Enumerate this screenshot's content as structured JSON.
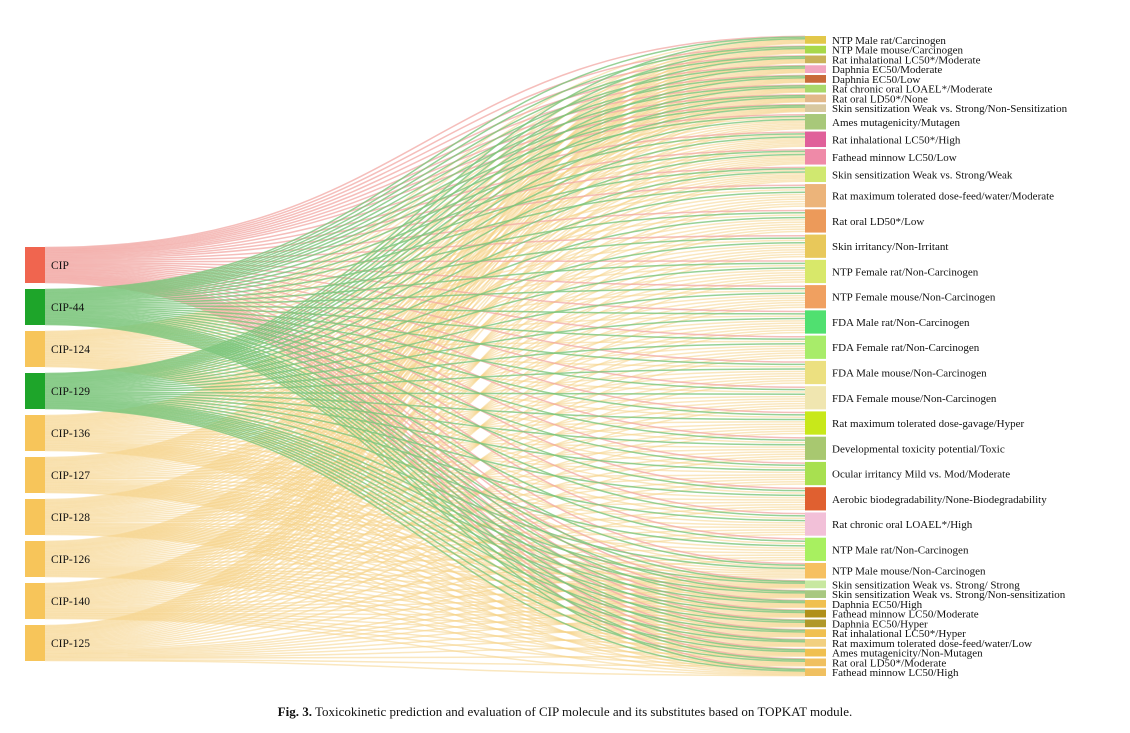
{
  "chart_data": {
    "type": "sankey",
    "sources": [
      {
        "name": "CIP",
        "color": "#f0654f"
      },
      {
        "name": "CIP-44",
        "color": "#1ea52a"
      },
      {
        "name": "CIP-124",
        "color": "#f7c55a"
      },
      {
        "name": "CIP-129",
        "color": "#1ea52a"
      },
      {
        "name": "CIP-136",
        "color": "#f7c55a"
      },
      {
        "name": "CIP-127",
        "color": "#f7c55a"
      },
      {
        "name": "CIP-128",
        "color": "#f7c55a"
      },
      {
        "name": "CIP-126",
        "color": "#f7c55a"
      },
      {
        "name": "CIP-140",
        "color": "#f7c55a"
      },
      {
        "name": "CIP-125",
        "color": "#f7c55a"
      }
    ],
    "targets": [
      {
        "name": "NTP Male rat/Carcinogen",
        "color": "#e2c84a",
        "weight": 1
      },
      {
        "name": "NTP Male mouse/Carcinogen",
        "color": "#a8d84a",
        "weight": 1
      },
      {
        "name": "Rat inhalational LC50*/Moderate",
        "color": "#c9b25a",
        "weight": 1
      },
      {
        "name": "Daphnia EC50/Moderate",
        "color": "#f2a6c0",
        "weight": 1
      },
      {
        "name": "Daphnia EC50/Low",
        "color": "#c96a3a",
        "weight": 1
      },
      {
        "name": "Rat chronic oral LOAEL*/Moderate",
        "color": "#a8d86a",
        "weight": 1
      },
      {
        "name": "Rat oral LD50*/None",
        "color": "#e2b88a",
        "weight": 1
      },
      {
        "name": "Skin sensitization Weak vs. Strong/Non-Sensitization",
        "color": "#d8c8a0",
        "weight": 1
      },
      {
        "name": "Ames mutagenicity/Mutagen",
        "color": "#a8c87a",
        "weight": 2
      },
      {
        "name": "Rat inhalational LC50*/High",
        "color": "#e0609a",
        "weight": 2
      },
      {
        "name": "Fathead minnow LC50/Low",
        "color": "#ef8aa8",
        "weight": 2
      },
      {
        "name": "Skin sensitization Weak vs. Strong/Weak",
        "color": "#d0e870",
        "weight": 2
      },
      {
        "name": "Rat maximum tolerated dose-feed/water/Moderate",
        "color": "#ecb47a",
        "weight": 3
      },
      {
        "name": "Rat oral LD50*/Low",
        "color": "#ec9a5a",
        "weight": 3
      },
      {
        "name": "Skin irritancy/Non-Irritant",
        "color": "#e8c85a",
        "weight": 3
      },
      {
        "name": "NTP Female rat/Non-Carcinogen",
        "color": "#d8e86a",
        "weight": 3
      },
      {
        "name": "NTP  Female mouse/Non-Carcinogen",
        "color": "#f0a060",
        "weight": 3
      },
      {
        "name": "FDA Male rat/Non-Carcinogen",
        "color": "#50e070",
        "weight": 3
      },
      {
        "name": "FDA Female rat/Non-Carcinogen",
        "color": "#a8ec6a",
        "weight": 3
      },
      {
        "name": "FDA Male mouse/Non-Carcinogen",
        "color": "#ece080",
        "weight": 3
      },
      {
        "name": "FDA Female mouse/Non-Carcinogen",
        "color": "#f0e6b0",
        "weight": 3
      },
      {
        "name": "Rat maximum tolerated dose-gavage/Hyper",
        "color": "#c8e81a",
        "weight": 3
      },
      {
        "name": "Developmental toxicity potential/Toxic",
        "color": "#a8c870",
        "weight": 3
      },
      {
        "name": "Ocular irritancy Mild vs. Mod/Moderate",
        "color": "#a8e050",
        "weight": 3
      },
      {
        "name": "Aerobic biodegradability/None-Biodegradability",
        "color": "#e06030",
        "weight": 3
      },
      {
        "name": "Rat chronic oral LOAEL*/High",
        "color": "#f2c0d8",
        "weight": 3
      },
      {
        "name": "NTP Male rat/Non-Carcinogen",
        "color": "#a8f060",
        "weight": 3
      },
      {
        "name": "NTP Male mouse/Non-Carcinogen",
        "color": "#f6c060",
        "weight": 2
      },
      {
        "name": "Skin sensitization Weak vs. Strong/ Strong",
        "color": "#c8e8a0",
        "weight": 1
      },
      {
        "name": "Skin sensitization Weak vs. Strong/Non-sensitization",
        "color": "#a8c880",
        "weight": 1
      },
      {
        "name": "Daphnia EC50/High",
        "color": "#f0c050",
        "weight": 1
      },
      {
        "name": "Fathead minnow LC50/Moderate",
        "color": "#b0901a",
        "weight": 1
      },
      {
        "name": "Daphnia EC50/Hyper",
        "color": "#b0982a",
        "weight": 1
      },
      {
        "name": "Rat inhalational LC50*/Hyper",
        "color": "#f0c050",
        "weight": 1
      },
      {
        "name": "Rat maximum tolerated dose-feed/water/Low",
        "color": "#f2d080",
        "weight": 1
      },
      {
        "name": "Ames mutagenicity/Non-Mutagen",
        "color": "#f0c050",
        "weight": 1
      },
      {
        "name": "Rat oral LD50*/Moderate",
        "color": "#f0c060",
        "weight": 1
      },
      {
        "name": "Fathead minnow LC50/High",
        "color": "#f0c060",
        "weight": 1
      }
    ]
  },
  "caption": {
    "label": "Fig. 3.",
    "text": "Toxicokinetic prediction and evaluation of CIP molecule and its substitutes based on TOPKAT module."
  }
}
